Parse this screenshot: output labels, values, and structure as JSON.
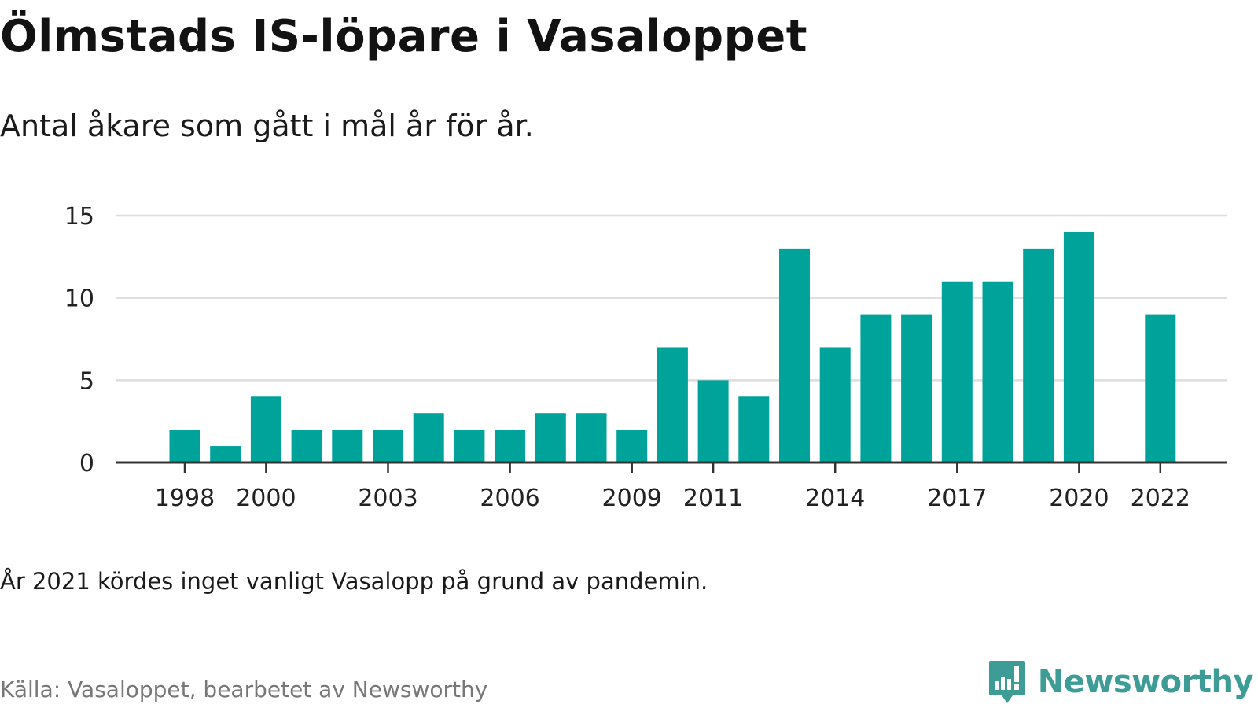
{
  "header": {
    "title": "Ölmstads IS-löpare i Vasaloppet",
    "subtitle": "Antal åkare som gått i mål år för år."
  },
  "footer": {
    "note": "År 2021 kördes inget vanligt Vasalopp på grund av pandemin.",
    "source": "Källa: Vasaloppet, bearbetet av Newsworthy",
    "brand": "Newsworthy",
    "brand_icon": "newsworthy-logo-icon",
    "brand_color": "#3d9c95"
  },
  "chart_data": {
    "type": "bar",
    "title": "Ölmstads IS-löpare i Vasaloppet",
    "subtitle": "Antal åkare som gått i mål år för år.",
    "xlabel": "",
    "ylabel": "",
    "categories": [
      1998,
      1999,
      2000,
      2001,
      2002,
      2003,
      2004,
      2005,
      2006,
      2007,
      2008,
      2009,
      2010,
      2011,
      2012,
      2013,
      2014,
      2015,
      2016,
      2017,
      2018,
      2019,
      2020,
      2021,
      2022
    ],
    "values": [
      2,
      1,
      4,
      2,
      2,
      2,
      3,
      2,
      2,
      3,
      3,
      2,
      7,
      5,
      4,
      13,
      7,
      9,
      9,
      11,
      11,
      13,
      14,
      null,
      9
    ],
    "x_tick_labels": [
      "1998",
      "2000",
      "2003",
      "2006",
      "2009",
      "2011",
      "2014",
      "2017",
      "2020",
      "2022"
    ],
    "y_ticks": [
      0,
      5,
      10,
      15
    ],
    "ylim": [
      0,
      15
    ],
    "grid": true,
    "bar_color": "#00a39a",
    "grid_color": "#dddddd",
    "axis_color": "#333333"
  }
}
